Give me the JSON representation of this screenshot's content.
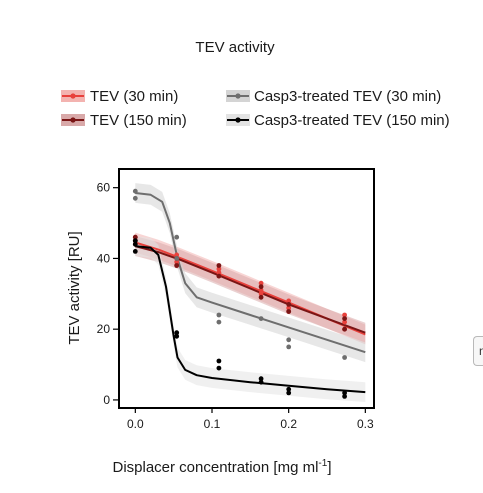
{
  "chart_data": {
    "type": "scatter",
    "title": "TEV activity",
    "xlabel": "Displacer concentration [mg ml",
    "xlabel_sup": "-1",
    "xlabel_end": "]",
    "ylabel": "TEV activity [RU]",
    "xlim": [
      -0.02,
      0.31
    ],
    "ylim": [
      -2,
      65
    ],
    "x_ticks": [
      0.0,
      0.1,
      0.2,
      0.3
    ],
    "x_tick_labels": [
      "0.0",
      "0.1",
      "0.2",
      "0.3"
    ],
    "y_ticks": [
      0,
      20,
      40,
      60
    ],
    "y_tick_labels": [
      "0",
      "20",
      "40",
      "60"
    ],
    "grid": false,
    "legend_position": "top",
    "series": [
      {
        "name": "TEV (30 min)",
        "color": "#e8413c",
        "band_color": "#f3b3b0",
        "points": [
          [
            0.0,
            46
          ],
          [
            0.0,
            45
          ],
          [
            0.0,
            44
          ],
          [
            0.054,
            41
          ],
          [
            0.054,
            39
          ],
          [
            0.054,
            38
          ],
          [
            0.109,
            37
          ],
          [
            0.109,
            36
          ],
          [
            0.109,
            35
          ],
          [
            0.164,
            33
          ],
          [
            0.164,
            31
          ],
          [
            0.164,
            30
          ],
          [
            0.2,
            28
          ],
          [
            0.2,
            26
          ],
          [
            0.2,
            25
          ],
          [
            0.273,
            24
          ],
          [
            0.273,
            22
          ],
          [
            0.273,
            20
          ]
        ],
        "fit": [
          [
            0.0,
            44.5
          ],
          [
            0.03,
            42.5
          ],
          [
            0.06,
            40
          ],
          [
            0.1,
            36.5
          ],
          [
            0.15,
            32
          ],
          [
            0.2,
            27.5
          ],
          [
            0.25,
            23
          ],
          [
            0.3,
            18.5
          ]
        ]
      },
      {
        "name": "TEV (150 min)",
        "color": "#7a1515",
        "band_color": "#d9a9a9",
        "points": [
          [
            0.0,
            46
          ],
          [
            0.0,
            45
          ],
          [
            0.054,
            40
          ],
          [
            0.054,
            38
          ],
          [
            0.109,
            38
          ],
          [
            0.109,
            35
          ],
          [
            0.164,
            32
          ],
          [
            0.164,
            29
          ],
          [
            0.2,
            27
          ],
          [
            0.2,
            25
          ],
          [
            0.273,
            23
          ],
          [
            0.273,
            20
          ]
        ],
        "fit": [
          [
            0.0,
            43.5
          ],
          [
            0.03,
            41.8
          ],
          [
            0.06,
            39.5
          ],
          [
            0.1,
            36
          ],
          [
            0.15,
            31.5
          ],
          [
            0.2,
            27
          ],
          [
            0.25,
            23
          ],
          [
            0.3,
            19
          ]
        ]
      },
      {
        "name": "Casp3-treated TEV (30 min)",
        "color": "#6e6e6e",
        "band_color": "#d4d4d4",
        "points": [
          [
            0.0,
            59
          ],
          [
            0.0,
            57
          ],
          [
            0.054,
            46
          ],
          [
            0.054,
            40
          ],
          [
            0.109,
            24
          ],
          [
            0.109,
            22
          ],
          [
            0.164,
            23
          ],
          [
            0.2,
            17
          ],
          [
            0.2,
            15
          ],
          [
            0.273,
            12
          ]
        ],
        "fit": [
          [
            0.0,
            58.5
          ],
          [
            0.02,
            58
          ],
          [
            0.035,
            56
          ],
          [
            0.045,
            50
          ],
          [
            0.055,
            40
          ],
          [
            0.065,
            33
          ],
          [
            0.08,
            29
          ],
          [
            0.1,
            27.5
          ],
          [
            0.15,
            24
          ],
          [
            0.2,
            20.5
          ],
          [
            0.25,
            17
          ],
          [
            0.3,
            13.5
          ]
        ]
      },
      {
        "name": "Casp3-treated TEV (150 min)",
        "color": "#000000",
        "band_color": "#e3e3e3",
        "points": [
          [
            0.0,
            45
          ],
          [
            0.0,
            44
          ],
          [
            0.0,
            42
          ],
          [
            0.054,
            19
          ],
          [
            0.054,
            18
          ],
          [
            0.109,
            11
          ],
          [
            0.109,
            9
          ],
          [
            0.164,
            6
          ],
          [
            0.164,
            5
          ],
          [
            0.2,
            3
          ],
          [
            0.2,
            2
          ],
          [
            0.273,
            2
          ],
          [
            0.273,
            1
          ]
        ],
        "fit": [
          [
            0.0,
            43.5
          ],
          [
            0.02,
            43
          ],
          [
            0.03,
            41
          ],
          [
            0.04,
            32
          ],
          [
            0.05,
            18
          ],
          [
            0.055,
            12
          ],
          [
            0.065,
            8.5
          ],
          [
            0.08,
            7
          ],
          [
            0.1,
            6.2
          ],
          [
            0.15,
            5
          ],
          [
            0.2,
            4
          ],
          [
            0.25,
            3
          ],
          [
            0.3,
            2.2
          ]
        ]
      }
    ]
  },
  "ui": {
    "side_tab_label": "n"
  }
}
